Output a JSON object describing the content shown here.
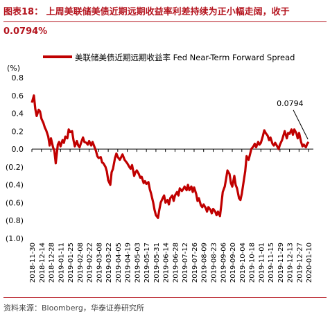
{
  "title": {
    "line1": "图表18：  上周美联储美债近期远期收益率利差持续为正小幅走阔，收于",
    "line2": "0.0794%"
  },
  "source": "资料来源：Bloomberg，华泰证券研究所",
  "chart_data": {
    "type": "line",
    "ylabel": "(%)",
    "ylim": [
      -1.0,
      0.8
    ],
    "yticks": [
      "0.8",
      "0.6",
      "0.4",
      "0.2",
      "0.0",
      "(0.2)",
      "(0.4)",
      "(0.6)",
      "(0.8)",
      "(1.0)"
    ],
    "ytick_values": [
      0.8,
      0.6,
      0.4,
      0.2,
      0.0,
      -0.2,
      -0.4,
      -0.6,
      -0.8,
      -1.0
    ],
    "xrange": [
      "2018-11-30",
      "2020-01-17"
    ],
    "xticks": [
      "2018-11-30",
      "2018-12-14",
      "2018-12-28",
      "2019-01-11",
      "2019-01-25",
      "2019-02-08",
      "2019-02-22",
      "2019-03-08",
      "2019-03-22",
      "2019-04-05",
      "2019-04-19",
      "2019-05-03",
      "2019-05-17",
      "2019-05-31",
      "2019-06-14",
      "2019-06-28",
      "2019-07-12",
      "2019-07-26",
      "2019-08-09",
      "2019-08-23",
      "2019-09-06",
      "2019-09-20",
      "2019-10-04",
      "2019-10-18",
      "2019-11-01",
      "2019-11-15",
      "2019-11-29",
      "2019-12-13",
      "2019-12-27",
      "2020-01-10"
    ],
    "legend": "美联储美债近期远期收益率 Fed Near-Term Forward Spread",
    "legend_position": "top",
    "line_color": "#c00000",
    "grid": false,
    "annotation": {
      "text": "0.0794",
      "x": "2020-01-10",
      "y": 0.0794
    },
    "series": [
      {
        "points": [
          [
            "2018-11-30",
            0.52
          ],
          [
            "2018-12-03",
            0.6
          ],
          [
            "2018-12-05",
            0.45
          ],
          [
            "2018-12-07",
            0.37
          ],
          [
            "2018-12-10",
            0.44
          ],
          [
            "2018-12-12",
            0.42
          ],
          [
            "2018-12-14",
            0.34
          ],
          [
            "2018-12-17",
            0.29
          ],
          [
            "2018-12-19",
            0.24
          ],
          [
            "2018-12-21",
            0.21
          ],
          [
            "2018-12-24",
            0.14
          ],
          [
            "2018-12-26",
            0.04
          ],
          [
            "2018-12-28",
            0.12
          ],
          [
            "2018-12-31",
            0.02
          ],
          [
            "2019-01-02",
            -0.02
          ],
          [
            "2019-01-04",
            -0.16
          ],
          [
            "2019-01-07",
            0.05
          ],
          [
            "2019-01-09",
            0.08
          ],
          [
            "2019-01-11",
            0.03
          ],
          [
            "2019-01-14",
            0.1
          ],
          [
            "2019-01-16",
            0.07
          ],
          [
            "2019-01-18",
            0.14
          ],
          [
            "2019-01-21",
            0.12
          ],
          [
            "2019-01-23",
            0.22
          ],
          [
            "2019-01-25",
            0.19
          ],
          [
            "2019-01-28",
            0.2
          ],
          [
            "2019-01-30",
            0.1
          ],
          [
            "2019-02-01",
            0.03
          ],
          [
            "2019-02-04",
            0.09
          ],
          [
            "2019-02-06",
            0.04
          ],
          [
            "2019-02-08",
            0.02
          ],
          [
            "2019-02-11",
            0.09
          ],
          [
            "2019-02-13",
            0.13
          ],
          [
            "2019-02-15",
            0.08
          ],
          [
            "2019-02-18",
            0.07
          ],
          [
            "2019-02-20",
            0.05
          ],
          [
            "2019-02-22",
            0.09
          ],
          [
            "2019-02-25",
            0.04
          ],
          [
            "2019-02-27",
            0.08
          ],
          [
            "2019-03-01",
            0.04
          ],
          [
            "2019-03-04",
            -0.02
          ],
          [
            "2019-03-06",
            -0.08
          ],
          [
            "2019-03-08",
            -0.1
          ],
          [
            "2019-03-11",
            -0.09
          ],
          [
            "2019-03-13",
            -0.15
          ],
          [
            "2019-03-15",
            -0.16
          ],
          [
            "2019-03-18",
            -0.2
          ],
          [
            "2019-03-20",
            -0.25
          ],
          [
            "2019-03-22",
            -0.35
          ],
          [
            "2019-03-25",
            -0.4
          ],
          [
            "2019-03-27",
            -0.26
          ],
          [
            "2019-03-29",
            -0.22
          ],
          [
            "2019-04-01",
            -0.1
          ],
          [
            "2019-04-03",
            -0.05
          ],
          [
            "2019-04-05",
            -0.09
          ],
          [
            "2019-04-08",
            -0.12
          ],
          [
            "2019-04-10",
            -0.09
          ],
          [
            "2019-04-12",
            -0.06
          ],
          [
            "2019-04-15",
            -0.12
          ],
          [
            "2019-04-17",
            -0.14
          ],
          [
            "2019-04-19",
            -0.16
          ],
          [
            "2019-04-22",
            -0.2
          ],
          [
            "2019-04-24",
            -0.22
          ],
          [
            "2019-04-26",
            -0.18
          ],
          [
            "2019-04-29",
            -0.3
          ],
          [
            "2019-05-01",
            -0.26
          ],
          [
            "2019-05-03",
            -0.24
          ],
          [
            "2019-05-06",
            -0.28
          ],
          [
            "2019-05-08",
            -0.32
          ],
          [
            "2019-05-10",
            -0.31
          ],
          [
            "2019-05-13",
            -0.38
          ],
          [
            "2019-05-15",
            -0.36
          ],
          [
            "2019-05-17",
            -0.39
          ],
          [
            "2019-05-20",
            -0.37
          ],
          [
            "2019-05-22",
            -0.45
          ],
          [
            "2019-05-24",
            -0.5
          ],
          [
            "2019-05-27",
            -0.6
          ],
          [
            "2019-05-29",
            -0.68
          ],
          [
            "2019-05-31",
            -0.74
          ],
          [
            "2019-06-03",
            -0.77
          ],
          [
            "2019-06-05",
            -0.68
          ],
          [
            "2019-06-07",
            -0.6
          ],
          [
            "2019-06-10",
            -0.55
          ],
          [
            "2019-06-12",
            -0.52
          ],
          [
            "2019-06-14",
            -0.6
          ],
          [
            "2019-06-17",
            -0.57
          ],
          [
            "2019-06-19",
            -0.62
          ],
          [
            "2019-06-21",
            -0.55
          ],
          [
            "2019-06-24",
            -0.52
          ],
          [
            "2019-06-26",
            -0.58
          ],
          [
            "2019-06-28",
            -0.52
          ],
          [
            "2019-07-01",
            -0.48
          ],
          [
            "2019-07-03",
            -0.52
          ],
          [
            "2019-07-05",
            -0.44
          ],
          [
            "2019-07-08",
            -0.47
          ],
          [
            "2019-07-10",
            -0.45
          ],
          [
            "2019-07-12",
            -0.42
          ],
          [
            "2019-07-15",
            -0.46
          ],
          [
            "2019-07-17",
            -0.4
          ],
          [
            "2019-07-19",
            -0.46
          ],
          [
            "2019-07-22",
            -0.42
          ],
          [
            "2019-07-24",
            -0.48
          ],
          [
            "2019-07-26",
            -0.43
          ],
          [
            "2019-07-29",
            -0.5
          ],
          [
            "2019-07-31",
            -0.58
          ],
          [
            "2019-08-02",
            -0.55
          ],
          [
            "2019-08-05",
            -0.63
          ],
          [
            "2019-08-07",
            -0.65
          ],
          [
            "2019-08-09",
            -0.62
          ],
          [
            "2019-08-12",
            -0.66
          ],
          [
            "2019-08-14",
            -0.7
          ],
          [
            "2019-08-16",
            -0.65
          ],
          [
            "2019-08-19",
            -0.68
          ],
          [
            "2019-08-21",
            -0.72
          ],
          [
            "2019-08-23",
            -0.67
          ],
          [
            "2019-08-26",
            -0.7
          ],
          [
            "2019-08-28",
            -0.74
          ],
          [
            "2019-08-30",
            -0.7
          ],
          [
            "2019-09-02",
            -0.75
          ],
          [
            "2019-09-04",
            -0.62
          ],
          [
            "2019-09-06",
            -0.48
          ],
          [
            "2019-09-09",
            -0.42
          ],
          [
            "2019-09-11",
            -0.33
          ],
          [
            "2019-09-13",
            -0.24
          ],
          [
            "2019-09-16",
            -0.28
          ],
          [
            "2019-09-18",
            -0.38
          ],
          [
            "2019-09-20",
            -0.42
          ],
          [
            "2019-09-23",
            -0.3
          ],
          [
            "2019-09-25",
            -0.4
          ],
          [
            "2019-09-27",
            -0.44
          ],
          [
            "2019-09-30",
            -0.55
          ],
          [
            "2019-10-02",
            -0.57
          ],
          [
            "2019-10-04",
            -0.5
          ],
          [
            "2019-10-07",
            -0.35
          ],
          [
            "2019-10-09",
            -0.25
          ],
          [
            "2019-10-11",
            -0.08
          ],
          [
            "2019-10-14",
            -0.12
          ],
          [
            "2019-10-16",
            -0.06
          ],
          [
            "2019-10-18",
            0.0
          ],
          [
            "2019-10-21",
            0.03
          ],
          [
            "2019-10-23",
            0.06
          ],
          [
            "2019-10-25",
            0.02
          ],
          [
            "2019-10-28",
            0.08
          ],
          [
            "2019-10-30",
            0.05
          ],
          [
            "2019-11-01",
            0.07
          ],
          [
            "2019-11-04",
            0.15
          ],
          [
            "2019-11-06",
            0.21
          ],
          [
            "2019-11-08",
            0.18
          ],
          [
            "2019-11-11",
            0.15
          ],
          [
            "2019-11-13",
            0.1
          ],
          [
            "2019-11-15",
            0.13
          ],
          [
            "2019-11-18",
            0.06
          ],
          [
            "2019-11-20",
            0.04
          ],
          [
            "2019-11-22",
            0.07
          ],
          [
            "2019-11-25",
            0.03
          ],
          [
            "2019-11-27",
            0.0
          ],
          [
            "2019-11-29",
            0.05
          ],
          [
            "2019-12-02",
            0.1
          ],
          [
            "2019-12-04",
            0.15
          ],
          [
            "2019-12-06",
            0.2
          ],
          [
            "2019-12-09",
            0.12
          ],
          [
            "2019-12-11",
            0.18
          ],
          [
            "2019-12-13",
            0.17
          ],
          [
            "2019-12-16",
            0.22
          ],
          [
            "2019-12-18",
            0.16
          ],
          [
            "2019-12-20",
            0.22
          ],
          [
            "2019-12-23",
            0.18
          ],
          [
            "2019-12-25",
            0.12
          ],
          [
            "2019-12-27",
            0.18
          ],
          [
            "2019-12-30",
            0.08
          ],
          [
            "2020-01-01",
            0.03
          ],
          [
            "2020-01-03",
            0.05
          ],
          [
            "2020-01-06",
            0.02
          ],
          [
            "2020-01-08",
            0.06
          ],
          [
            "2020-01-10",
            0.0794
          ]
        ]
      }
    ]
  }
}
